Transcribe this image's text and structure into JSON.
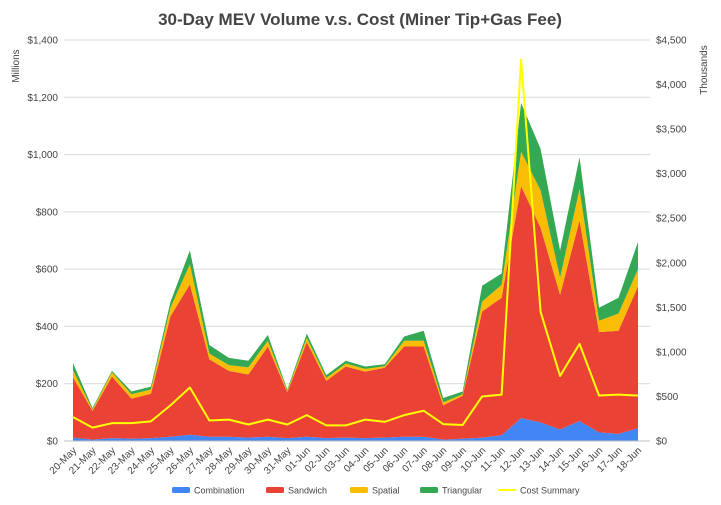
{
  "chart_data": {
    "type": "area",
    "title": "30-Day MEV Volume v.s. Cost (Miner Tip+Gas Fee)",
    "ylabel_left": "Millions",
    "ylabel_right": "Thousands",
    "ylim_left": [
      0,
      1400
    ],
    "ylim_right": [
      0,
      4500
    ],
    "y_ticks_left": [
      "$0",
      "$200",
      "$400",
      "$600",
      "$800",
      "$1,000",
      "$1,200",
      "$1,400"
    ],
    "y_ticks_right": [
      "$0",
      "$500",
      "$1,000",
      "$1,500",
      "$2,000",
      "$2,500",
      "$3,000",
      "$3,500",
      "$4,000",
      "$4,500"
    ],
    "grid": true,
    "legend_position": "bottom",
    "stacked": true,
    "categories": [
      "20-May",
      "21-May",
      "22-May",
      "23-May",
      "24-May",
      "25-May",
      "26-May",
      "27-May",
      "28-May",
      "29-May",
      "30-May",
      "31-May",
      "01-Jun",
      "02-Jun",
      "03-Jun",
      "04-Jun",
      "05-Jun",
      "06-Jun",
      "07-Jun",
      "08-Jun",
      "09-Jun",
      "10-Jun",
      "11-Jun",
      "12-Jun",
      "13-Jun",
      "14-Jun",
      "15-Jun",
      "16-Jun",
      "17-Jun",
      "18-Jun"
    ],
    "series": [
      {
        "name": "Combination",
        "color": "#4285f4",
        "axis": "left",
        "values": [
          12,
          5,
          10,
          8,
          10,
          15,
          22,
          15,
          15,
          12,
          15,
          10,
          15,
          10,
          12,
          10,
          12,
          15,
          15,
          5,
          8,
          12,
          20,
          80,
          65,
          40,
          70,
          30,
          25,
          45
        ]
      },
      {
        "name": "Sandwich",
        "color": "#ea4335",
        "axis": "left",
        "values": [
          210,
          100,
          215,
          140,
          155,
          420,
          525,
          270,
          230,
          220,
          315,
          160,
          330,
          200,
          248,
          232,
          244,
          315,
          315,
          120,
          150,
          440,
          480,
          810,
          680,
          470,
          700,
          350,
          360,
          495
        ]
      },
      {
        "name": "Spatial",
        "color": "#fbbc04",
        "axis": "left",
        "values": [
          25,
          5,
          15,
          15,
          15,
          30,
          70,
          20,
          20,
          25,
          20,
          5,
          15,
          10,
          10,
          10,
          5,
          20,
          20,
          10,
          5,
          35,
          45,
          120,
          130,
          60,
          110,
          40,
          60,
          60
        ]
      },
      {
        "name": "Triangular",
        "color": "#34a853",
        "axis": "left",
        "values": [
          25,
          5,
          5,
          10,
          10,
          20,
          48,
          30,
          25,
          23,
          20,
          5,
          15,
          10,
          10,
          8,
          7,
          15,
          35,
          15,
          10,
          55,
          40,
          170,
          145,
          95,
          110,
          45,
          55,
          95
        ]
      },
      {
        "name": "Cost Summary",
        "color": "#ffff00",
        "axis": "right",
        "type": "line",
        "values": [
          270,
          150,
          200,
          200,
          220,
          400,
          600,
          230,
          240,
          185,
          240,
          185,
          290,
          175,
          175,
          240,
          215,
          290,
          340,
          190,
          180,
          500,
          520,
          4280,
          1450,
          730,
          1090,
          510,
          520,
          510
        ]
      }
    ]
  }
}
